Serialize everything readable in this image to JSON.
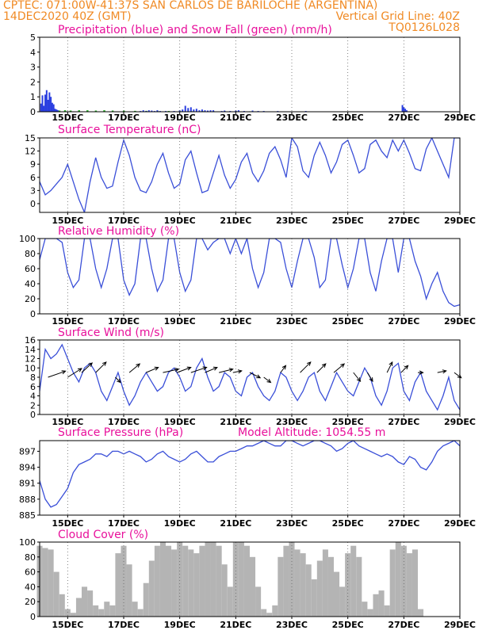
{
  "header": {
    "line1": "CPTEC:   071:00W-41:37S  SAN CARLOS DE BARILOCHE (ARGENTINA)",
    "line2_left": "14DEC2020 40Z (GMT)",
    "line2_right": "Vertical Grid Line: 40Z",
    "line3_right": "TQ0126L028",
    "color": "#f08a24"
  },
  "colors": {
    "title": "#e8109b",
    "line": "#3a4fd8",
    "rain": "#2a3ee0",
    "snow": "#1faa1f",
    "cloud": "#b4b4b4"
  },
  "x_days": [
    15,
    17,
    19,
    21,
    23,
    25,
    27,
    29
  ],
  "x_labels": [
    "15DEC",
    "17DEC",
    "19DEC",
    "21DEC",
    "23DEC",
    "25DEC",
    "27DEC",
    "29DEC"
  ],
  "chart_data": [
    {
      "id": "precip",
      "type": "bar",
      "title": "Precipitation (blue) and Snow Fall (green) (mm/h)",
      "ylim": [
        0,
        5
      ],
      "yticks": [
        0,
        1,
        2,
        3,
        4,
        5
      ],
      "x_days": [
        14.05,
        14.1,
        14.15,
        14.2,
        14.25,
        14.3,
        14.35,
        14.4,
        14.45,
        14.5,
        14.55,
        14.6,
        14.65,
        17.6,
        17.7,
        17.8,
        17.9,
        18.0,
        18.1,
        18.2,
        18.3,
        18.5,
        18.8,
        19.0,
        19.1,
        19.2,
        19.3,
        19.4,
        19.5,
        19.6,
        19.7,
        19.8,
        19.9,
        20.0,
        20.1,
        20.2,
        20.5,
        20.6,
        20.8,
        21.0,
        21.1,
        21.3,
        21.6,
        21.8,
        22.0,
        22.5,
        23.5,
        26.95,
        27.0,
        27.05,
        27.1
      ],
      "values": [
        0.55,
        1.1,
        0.4,
        1.15,
        1.45,
        0.8,
        1.3,
        1.0,
        0.6,
        0.5,
        0.2,
        0.15,
        0.1,
        0.05,
        0.1,
        0.05,
        0.1,
        0.08,
        0.05,
        0.1,
        0.05,
        0.05,
        0.05,
        0.1,
        0.15,
        0.4,
        0.25,
        0.3,
        0.15,
        0.2,
        0.1,
        0.15,
        0.1,
        0.08,
        0.1,
        0.1,
        0.05,
        0.08,
        0.05,
        0.08,
        0.1,
        0.05,
        0.08,
        0.05,
        0.05,
        0.05,
        0.05,
        0.45,
        0.3,
        0.2,
        0.1
      ],
      "snow_x": [
        14.5,
        14.6,
        14.7,
        14.9,
        15.1,
        15.4,
        15.7,
        16.0,
        16.3,
        16.6,
        17.0,
        17.4,
        17.8,
        18.2,
        18.6,
        19.0,
        19.4,
        19.8,
        20.2,
        20.6,
        21.0,
        21.5,
        22.0
      ],
      "snow_values": [
        0.1,
        0.12,
        0.08,
        0.1,
        0.08,
        0.1,
        0.1,
        0.08,
        0.1,
        0.08,
        0.08,
        0.06,
        0.06,
        0.06,
        0.05,
        0.05,
        0.05,
        0.05,
        0.04,
        0.04,
        0.04,
        0.03,
        0.03
      ]
    },
    {
      "id": "temp",
      "type": "line",
      "title": "Surface Temperature (nC)",
      "ylim": [
        -2,
        15
      ],
      "yticks": [
        0,
        3,
        6,
        9,
        12,
        15
      ],
      "x": [
        14.0,
        14.2,
        14.4,
        14.6,
        14.8,
        15.0,
        15.2,
        15.4,
        15.6,
        15.8,
        16.0,
        16.2,
        16.4,
        16.6,
        16.8,
        17.0,
        17.2,
        17.4,
        17.6,
        17.8,
        18.0,
        18.2,
        18.4,
        18.6,
        18.8,
        19.0,
        19.2,
        19.4,
        19.6,
        19.8,
        20.0,
        20.2,
        20.4,
        20.6,
        20.8,
        21.0,
        21.2,
        21.4,
        21.6,
        21.8,
        22.0,
        22.2,
        22.4,
        22.6,
        22.8,
        23.0,
        23.2,
        23.4,
        23.6,
        23.8,
        24.0,
        24.2,
        24.4,
        24.6,
        24.8,
        25.0,
        25.2,
        25.4,
        25.6,
        25.8,
        26.0,
        26.2,
        26.4,
        26.6,
        26.8,
        27.0,
        27.2,
        27.4,
        27.6,
        27.8,
        28.0,
        28.2,
        28.4,
        28.6,
        28.8,
        29.0
      ],
      "y": [
        5.0,
        2.0,
        3.0,
        4.5,
        6.0,
        9.0,
        5.0,
        1.0,
        -2.0,
        5.0,
        10.5,
        6.0,
        3.5,
        4.0,
        9.5,
        14.5,
        11.0,
        6.0,
        3.0,
        2.5,
        5.0,
        9.0,
        11.5,
        7.0,
        3.5,
        4.5,
        10.0,
        12.0,
        7.0,
        2.5,
        3.0,
        7.0,
        11.0,
        6.5,
        3.5,
        5.5,
        9.5,
        11.5,
        7.0,
        5.0,
        7.5,
        11.5,
        13.0,
        10.0,
        6.0,
        15.0,
        13.0,
        7.5,
        6.0,
        11.0,
        14.0,
        11.0,
        7.0,
        9.5,
        13.5,
        14.5,
        11.0,
        7.0,
        8.0,
        13.5,
        14.5,
        12.0,
        10.5,
        14.5,
        12.0,
        14.5,
        11.5,
        8.0,
        7.5,
        12.5,
        15.0,
        12.0,
        9.0,
        6.0,
        15.0,
        15.0
      ]
    },
    {
      "id": "rh",
      "type": "line",
      "title": "Relative Humidity (%)",
      "ylim": [
        0,
        100
      ],
      "yticks": [
        0,
        20,
        40,
        60,
        80,
        100
      ],
      "x": [
        14.0,
        14.2,
        14.4,
        14.6,
        14.8,
        15.0,
        15.2,
        15.4,
        15.6,
        15.8,
        16.0,
        16.2,
        16.4,
        16.6,
        16.8,
        17.0,
        17.2,
        17.4,
        17.6,
        17.8,
        18.0,
        18.2,
        18.4,
        18.6,
        18.8,
        19.0,
        19.2,
        19.4,
        19.6,
        19.8,
        20.0,
        20.2,
        20.4,
        20.6,
        20.8,
        21.0,
        21.2,
        21.4,
        21.6,
        21.8,
        22.0,
        22.2,
        22.4,
        22.6,
        22.8,
        23.0,
        23.2,
        23.4,
        23.6,
        23.8,
        24.0,
        24.2,
        24.4,
        24.6,
        24.8,
        25.0,
        25.2,
        25.4,
        25.6,
        25.8,
        26.0,
        26.2,
        26.4,
        26.6,
        26.8,
        27.0,
        27.2,
        27.4,
        27.6,
        27.8,
        28.0,
        28.2,
        28.4,
        28.6,
        28.8,
        29.0
      ],
      "y": [
        72,
        100,
        100,
        100,
        95,
        55,
        35,
        45,
        100,
        100,
        60,
        35,
        60,
        100,
        100,
        45,
        25,
        40,
        100,
        100,
        60,
        30,
        45,
        100,
        100,
        55,
        30,
        45,
        100,
        100,
        85,
        95,
        100,
        100,
        80,
        100,
        80,
        100,
        60,
        35,
        55,
        100,
        100,
        95,
        60,
        35,
        70,
        100,
        100,
        75,
        35,
        45,
        100,
        100,
        65,
        35,
        60,
        100,
        100,
        55,
        30,
        70,
        100,
        100,
        55,
        100,
        100,
        70,
        50,
        20,
        40,
        55,
        30,
        15,
        10,
        12
      ]
    },
    {
      "id": "wind",
      "type": "line",
      "title": "Surface Wind (m/s)",
      "ylim": [
        0,
        16
      ],
      "yticks": [
        0,
        2,
        4,
        6,
        8,
        10,
        12,
        14,
        16
      ],
      "x": [
        14.0,
        14.2,
        14.4,
        14.6,
        14.8,
        15.0,
        15.2,
        15.4,
        15.6,
        15.8,
        16.0,
        16.2,
        16.4,
        16.6,
        16.8,
        17.0,
        17.2,
        17.4,
        17.6,
        17.8,
        18.0,
        18.2,
        18.4,
        18.6,
        18.8,
        19.0,
        19.2,
        19.4,
        19.6,
        19.8,
        20.0,
        20.2,
        20.4,
        20.6,
        20.8,
        21.0,
        21.2,
        21.4,
        21.6,
        21.8,
        22.0,
        22.2,
        22.4,
        22.6,
        22.8,
        23.0,
        23.2,
        23.4,
        23.6,
        23.8,
        24.0,
        24.2,
        24.4,
        24.6,
        24.8,
        25.0,
        25.2,
        25.4,
        25.6,
        25.8,
        26.0,
        26.2,
        26.4,
        26.6,
        26.8,
        27.0,
        27.2,
        27.4,
        27.6,
        27.8,
        28.0,
        28.2,
        28.4,
        28.6,
        28.8,
        29.0
      ],
      "y": [
        5,
        14,
        12,
        13,
        15,
        12,
        9,
        7,
        10,
        11,
        9,
        5,
        3,
        6,
        9,
        5,
        2,
        4,
        7,
        9,
        7,
        5,
        6,
        9,
        10,
        8,
        5,
        6,
        10,
        12,
        8,
        5,
        6,
        9,
        8,
        5,
        4,
        8,
        9,
        6,
        4,
        3,
        5,
        9,
        8,
        5,
        3,
        5,
        8,
        9,
        5,
        3,
        6,
        9,
        7,
        5,
        4,
        7,
        10,
        8,
        4,
        2,
        5,
        10,
        11,
        5,
        3,
        7,
        9,
        5,
        3,
        1,
        4,
        8,
        3,
        1
      ]
    },
    {
      "id": "pressure",
      "type": "line",
      "title": "Surface Pressure (hPa)",
      "model_altitude": "Model Altitude: 1054.55 m",
      "ylim": [
        885,
        899
      ],
      "yticks": [
        885,
        888,
        891,
        894,
        897
      ],
      "x": [
        14.0,
        14.2,
        14.4,
        14.6,
        14.8,
        15.0,
        15.2,
        15.4,
        15.6,
        15.8,
        16.0,
        16.2,
        16.4,
        16.6,
        16.8,
        17.0,
        17.2,
        17.4,
        17.6,
        17.8,
        18.0,
        18.2,
        18.4,
        18.6,
        18.8,
        19.0,
        19.2,
        19.4,
        19.6,
        19.8,
        20.0,
        20.2,
        20.4,
        20.6,
        20.8,
        21.0,
        21.2,
        21.4,
        21.6,
        21.8,
        22.0,
        22.2,
        22.4,
        22.6,
        22.8,
        23.0,
        23.2,
        23.4,
        23.6,
        23.8,
        24.0,
        24.2,
        24.4,
        24.6,
        24.8,
        25.0,
        25.2,
        25.4,
        25.6,
        25.8,
        26.0,
        26.2,
        26.4,
        26.6,
        26.8,
        27.0,
        27.2,
        27.4,
        27.6,
        27.8,
        28.0,
        28.2,
        28.4,
        28.6,
        28.8,
        29.0
      ],
      "y": [
        891.5,
        888.0,
        886.5,
        887.0,
        888.5,
        890.0,
        893.0,
        894.5,
        895.0,
        895.5,
        896.5,
        896.5,
        896.0,
        897.0,
        897.0,
        896.5,
        897.0,
        896.5,
        896.0,
        895.0,
        895.5,
        896.5,
        897.0,
        896.0,
        895.5,
        895.0,
        895.5,
        896.5,
        897.0,
        896.0,
        895.0,
        895.0,
        896.0,
        896.5,
        897.0,
        897.0,
        897.5,
        898.0,
        898.0,
        898.5,
        899.0,
        898.5,
        898.0,
        898.0,
        899.0,
        899.0,
        898.5,
        898.0,
        898.5,
        899.0,
        899.0,
        898.5,
        898.0,
        897.0,
        897.5,
        898.5,
        899.0,
        898.0,
        897.5,
        897.0,
        896.5,
        896.0,
        896.5,
        896.0,
        895.0,
        894.5,
        896.0,
        895.5,
        894.0,
        893.5,
        895.0,
        897.0,
        898.0,
        898.5,
        899.0,
        898.0
      ]
    },
    {
      "id": "cloud",
      "type": "bar",
      "title": "Cloud Cover (%)",
      "ylim": [
        0,
        100
      ],
      "yticks": [
        0,
        20,
        40,
        60,
        80,
        100
      ],
      "x": [
        14.0,
        14.2,
        14.4,
        14.6,
        14.8,
        15.0,
        15.2,
        15.4,
        15.6,
        15.8,
        16.0,
        16.2,
        16.4,
        16.6,
        16.8,
        17.0,
        17.2,
        17.4,
        17.6,
        17.8,
        18.0,
        18.2,
        18.4,
        18.6,
        18.8,
        19.0,
        19.2,
        19.4,
        19.6,
        19.8,
        20.0,
        20.2,
        20.4,
        20.6,
        20.8,
        21.0,
        21.2,
        21.4,
        21.6,
        21.8,
        22.0,
        22.2,
        22.4,
        22.6,
        22.8,
        23.0,
        23.2,
        23.4,
        23.6,
        23.8,
        24.0,
        24.2,
        24.4,
        24.6,
        24.8,
        25.0,
        25.2,
        25.4,
        25.6,
        25.8,
        26.0,
        26.2,
        26.4,
        26.6,
        26.8,
        27.0,
        27.2,
        27.4,
        27.6,
        27.8,
        28.0,
        28.2,
        28.4,
        28.6,
        28.8,
        29.0
      ],
      "y": [
        95,
        92,
        90,
        60,
        30,
        10,
        5,
        25,
        40,
        35,
        15,
        10,
        20,
        15,
        85,
        95,
        70,
        20,
        10,
        45,
        75,
        95,
        100,
        95,
        90,
        100,
        95,
        90,
        85,
        95,
        100,
        100,
        95,
        70,
        40,
        100,
        100,
        95,
        80,
        40,
        10,
        5,
        15,
        80,
        95,
        100,
        90,
        85,
        70,
        50,
        75,
        90,
        80,
        60,
        40,
        85,
        95,
        80,
        20,
        10,
        30,
        35,
        15,
        90,
        100,
        95,
        85,
        90,
        10,
        0,
        0,
        0,
        0,
        0,
        0,
        0
      ]
    }
  ],
  "wind_arrows": [
    {
      "x": 14.3,
      "y": 8,
      "u": 1.0,
      "v": 0.35
    },
    {
      "x": 15.0,
      "y": 8,
      "u": 0.8,
      "v": 0.5
    },
    {
      "x": 15.5,
      "y": 9,
      "u": 0.6,
      "v": 0.55
    },
    {
      "x": 16.0,
      "y": 9,
      "u": 0.6,
      "v": 0.6
    },
    {
      "x": 16.7,
      "y": 8,
      "u": 0.3,
      "v": -0.3
    },
    {
      "x": 17.2,
      "y": 9,
      "u": 0.6,
      "v": 0.5
    },
    {
      "x": 17.8,
      "y": 9,
      "u": 0.7,
      "v": 0.3
    },
    {
      "x": 18.4,
      "y": 9,
      "u": 0.9,
      "v": 0.2
    },
    {
      "x": 18.9,
      "y": 9,
      "u": 0.8,
      "v": 0.3
    },
    {
      "x": 19.4,
      "y": 9,
      "u": 0.9,
      "v": 0.3
    },
    {
      "x": 19.9,
      "y": 9,
      "u": 0.7,
      "v": 0.3
    },
    {
      "x": 20.4,
      "y": 9,
      "u": 0.8,
      "v": 0.2
    },
    {
      "x": 20.9,
      "y": 9,
      "u": 0.5,
      "v": 0.1
    },
    {
      "x": 21.5,
      "y": 9,
      "u": 0.6,
      "v": -0.3
    },
    {
      "x": 22.0,
      "y": 8,
      "u": 0.4,
      "v": -0.3
    },
    {
      "x": 22.6,
      "y": 9,
      "u": 0.3,
      "v": 0.4
    },
    {
      "x": 23.3,
      "y": 9,
      "u": 0.6,
      "v": 0.6
    },
    {
      "x": 23.9,
      "y": 9,
      "u": 0.5,
      "v": 0.5
    },
    {
      "x": 24.5,
      "y": 9,
      "u": 0.6,
      "v": 0.5
    },
    {
      "x": 25.2,
      "y": 9,
      "u": 0.4,
      "v": -0.5
    },
    {
      "x": 25.7,
      "y": 9,
      "u": 0.3,
      "v": -0.5
    },
    {
      "x": 26.4,
      "y": 9,
      "u": 0.3,
      "v": 0.6
    },
    {
      "x": 26.9,
      "y": 9,
      "u": 0.4,
      "v": 0.4
    },
    {
      "x": 27.5,
      "y": 9,
      "u": 0.3,
      "v": 0.0
    },
    {
      "x": 28.2,
      "y": 9,
      "u": 0.5,
      "v": 0.1
    },
    {
      "x": 28.8,
      "y": 9,
      "u": 0.4,
      "v": -0.3
    }
  ]
}
